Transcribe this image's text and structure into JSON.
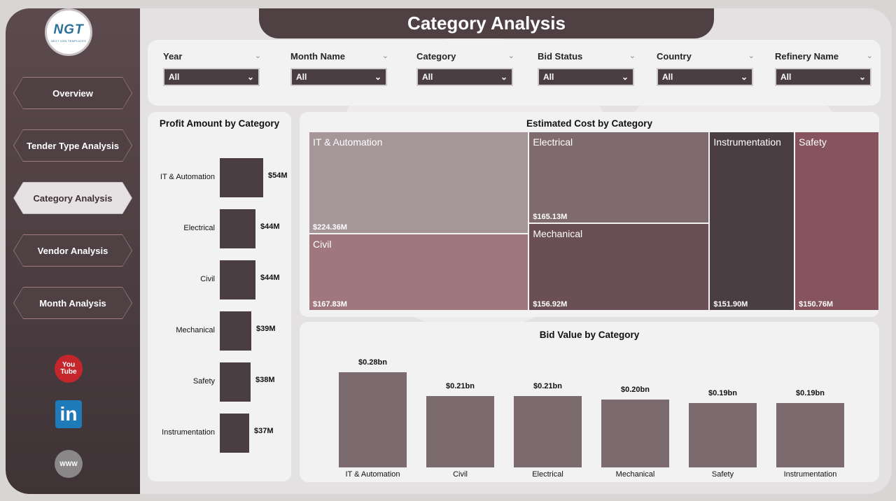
{
  "title": "Category Analysis",
  "logo": {
    "mark": "NGT",
    "sub": "NEXT GEN TEMPLATES"
  },
  "nav": [
    {
      "label": "Overview",
      "active": false
    },
    {
      "label": "Tender Type Analysis",
      "active": false
    },
    {
      "label": "Category Analysis",
      "active": true
    },
    {
      "label": "Vendor Analysis",
      "active": false
    },
    {
      "label": "Month Analysis",
      "active": false
    }
  ],
  "social": {
    "youtube": "You Tube",
    "linkedin": "in",
    "web": "WWW"
  },
  "filters": [
    {
      "label": "Year",
      "value": "All"
    },
    {
      "label": "Month Name",
      "value": "All"
    },
    {
      "label": "Category",
      "value": "All"
    },
    {
      "label": "Bid Status",
      "value": "All"
    },
    {
      "label": "Country",
      "value": "All"
    },
    {
      "label": "Refinery Name",
      "value": "All"
    }
  ],
  "profit_title": "Profit Amount by Category",
  "cost_title": "Estimated Cost by Category",
  "bid_title": "Bid Value by Category",
  "chart_data": [
    {
      "type": "bar",
      "orientation": "horizontal",
      "title": "Profit Amount by Category",
      "categories": [
        "IT & Automation",
        "Electrical",
        "Civil",
        "Mechanical",
        "Safety",
        "Instrumentation"
      ],
      "values": [
        54,
        44,
        44,
        39,
        38,
        37
      ],
      "labels": [
        "$54M",
        "$44M",
        "$44M",
        "$39M",
        "$38M",
        "$37M"
      ],
      "unit": "M"
    },
    {
      "type": "treemap",
      "title": "Estimated Cost by Category",
      "categories": [
        "IT & Automation",
        "Civil",
        "Electrical",
        "Mechanical",
        "Instrumentation",
        "Safety"
      ],
      "values": [
        224.36,
        167.83,
        165.13,
        156.92,
        151.9,
        150.76
      ],
      "labels": [
        "$224.36M",
        "$167.83M",
        "$165.13M",
        "$156.92M",
        "$151.90M",
        "$150.76M"
      ],
      "colors": [
        "#a59799",
        "#a0777d",
        "#7f6b6e",
        "#6a5054",
        "#4a3e42",
        "#85545c"
      ]
    },
    {
      "type": "bar",
      "title": "Bid Value by Category",
      "categories": [
        "IT & Automation",
        "Civil",
        "Electrical",
        "Mechanical",
        "Safety",
        "Instrumentation"
      ],
      "values": [
        0.28,
        0.21,
        0.21,
        0.2,
        0.19,
        0.19
      ],
      "labels": [
        "$0.28bn",
        "$0.21bn",
        "$0.21bn",
        "$0.20bn",
        "$0.19bn",
        "$0.19bn"
      ],
      "unit": "bn"
    }
  ]
}
